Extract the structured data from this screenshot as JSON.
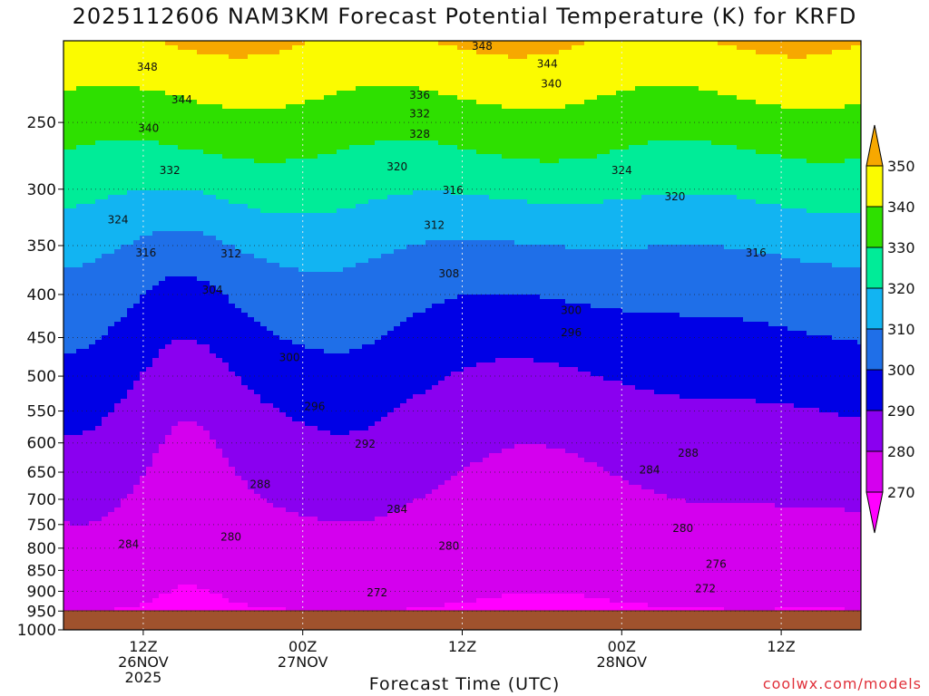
{
  "chart_data": {
    "type": "contour",
    "title": "2025112606 NAM3KM Forecast Potential Temperature (K) for KRFD",
    "xlabel": "Forecast Time (UTC)",
    "ylabel": "",
    "y_axis": {
      "ticks": [
        250,
        300,
        350,
        400,
        450,
        500,
        550,
        600,
        650,
        700,
        750,
        800,
        850,
        900,
        950,
        1000
      ],
      "range": [
        200,
        1000
      ],
      "scale": "log"
    },
    "x_axis": {
      "range_hours": [
        0,
        60
      ],
      "ticks": [
        {
          "hour": 6,
          "label": "12Z",
          "date": "26NOV",
          "year": "2025"
        },
        {
          "hour": 18,
          "label": "00Z",
          "date": "27NOV",
          "year": ""
        },
        {
          "hour": 30,
          "label": "12Z",
          "date": "",
          "year": ""
        },
        {
          "hour": 42,
          "label": "00Z",
          "date": "28NOV",
          "year": ""
        },
        {
          "hour": 54,
          "label": "12Z",
          "date": "",
          "year": ""
        }
      ]
    },
    "colorbar": {
      "levels": [
        270,
        280,
        290,
        300,
        310,
        320,
        330,
        340,
        350
      ],
      "colors": [
        "#ff00ff",
        "#d400ee",
        "#8a00f0",
        "#0000e6",
        "#1f6fe8",
        "#12b4f2",
        "#00ec98",
        "#2ee000",
        "#fbfb00",
        "#f7a800"
      ]
    },
    "contour_labels": [
      {
        "text": "348",
        "hour": 6.3,
        "p": 215
      },
      {
        "text": "344",
        "hour": 8.9,
        "p": 235
      },
      {
        "text": "340",
        "hour": 6.4,
        "p": 254
      },
      {
        "text": "332",
        "hour": 8.0,
        "p": 285
      },
      {
        "text": "324",
        "hour": 4.1,
        "p": 326
      },
      {
        "text": "316",
        "hour": 6.2,
        "p": 357
      },
      {
        "text": "312",
        "hour": 12.6,
        "p": 358
      },
      {
        "text": "304",
        "hour": 11.2,
        "p": 395
      },
      {
        "text": "300",
        "hour": 17.0,
        "p": 475
      },
      {
        "text": "296",
        "hour": 18.9,
        "p": 543
      },
      {
        "text": "292",
        "hour": 22.7,
        "p": 602
      },
      {
        "text": "288",
        "hour": 14.8,
        "p": 672
      },
      {
        "text": "284",
        "hour": 25.1,
        "p": 719
      },
      {
        "text": "284",
        "hour": 4.9,
        "p": 791
      },
      {
        "text": "280",
        "hour": 12.6,
        "p": 776
      },
      {
        "text": "280",
        "hour": 29.0,
        "p": 795
      },
      {
        "text": "272",
        "hour": 23.6,
        "p": 904
      },
      {
        "text": "348",
        "hour": 31.5,
        "p": 203
      },
      {
        "text": "344",
        "hour": 36.4,
        "p": 213
      },
      {
        "text": "340",
        "hour": 36.7,
        "p": 225
      },
      {
        "text": "336",
        "hour": 26.8,
        "p": 232
      },
      {
        "text": "332",
        "hour": 26.8,
        "p": 244
      },
      {
        "text": "328",
        "hour": 26.8,
        "p": 258
      },
      {
        "text": "320",
        "hour": 25.1,
        "p": 282
      },
      {
        "text": "316",
        "hour": 29.3,
        "p": 301
      },
      {
        "text": "312",
        "hour": 27.9,
        "p": 331
      },
      {
        "text": "308",
        "hour": 29.0,
        "p": 378
      },
      {
        "text": "300",
        "hour": 38.2,
        "p": 418
      },
      {
        "text": "296",
        "hour": 38.2,
        "p": 444
      },
      {
        "text": "324",
        "hour": 42.0,
        "p": 285
      },
      {
        "text": "320",
        "hour": 46.0,
        "p": 306
      },
      {
        "text": "316",
        "hour": 52.1,
        "p": 357
      },
      {
        "text": "288",
        "hour": 47.0,
        "p": 617
      },
      {
        "text": "284",
        "hour": 44.1,
        "p": 646
      },
      {
        "text": "280",
        "hour": 46.6,
        "p": 758
      },
      {
        "text": "276",
        "hour": 49.1,
        "p": 836
      },
      {
        "text": "272",
        "hour": 48.3,
        "p": 893
      }
    ]
  },
  "watermark": "coolwx.com/models"
}
